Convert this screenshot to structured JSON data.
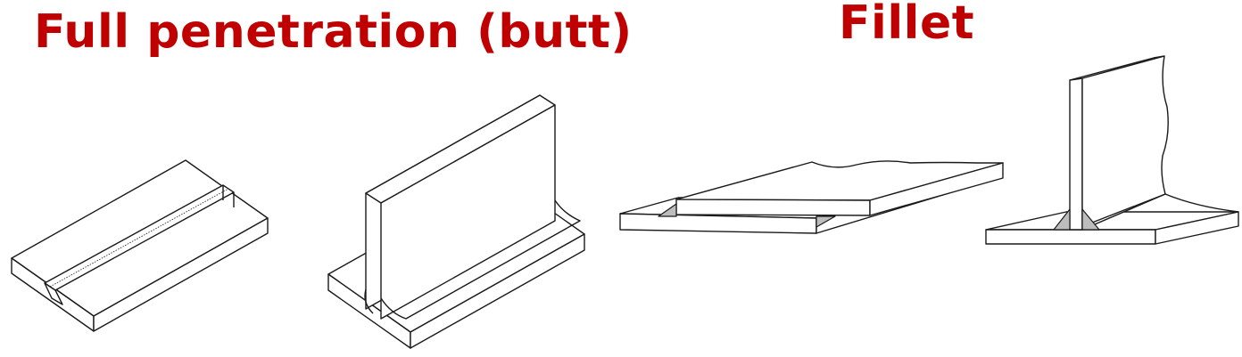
{
  "headings": {
    "butt": "Full penetration (butt)",
    "fillet": "Fillet"
  },
  "colors": {
    "heading": "#c00000",
    "weld_fill": "#bdbdbd",
    "line": "#1a1a1a"
  }
}
